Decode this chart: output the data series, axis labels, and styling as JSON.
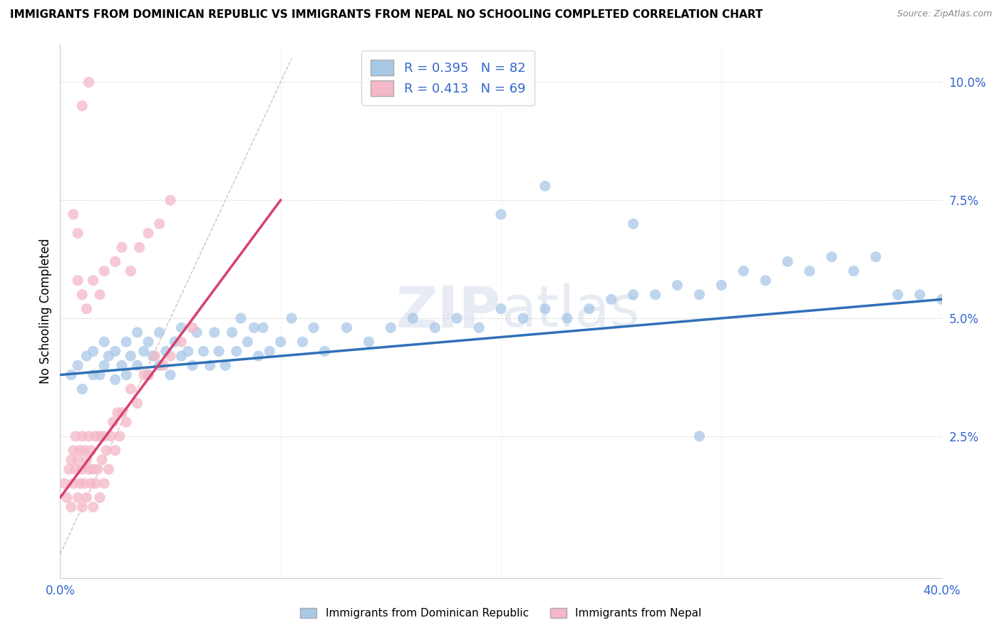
{
  "title": "IMMIGRANTS FROM DOMINICAN REPUBLIC VS IMMIGRANTS FROM NEPAL NO SCHOOLING COMPLETED CORRELATION CHART",
  "source": "Source: ZipAtlas.com",
  "ylabel": "No Schooling Completed",
  "ytick_vals": [
    0.025,
    0.05,
    0.075,
    0.1
  ],
  "ytick_labels": [
    "2.5%",
    "5.0%",
    "7.5%",
    "10.0%"
  ],
  "xrange": [
    0.0,
    0.4
  ],
  "yrange": [
    -0.005,
    0.108
  ],
  "legend_blue_r": "R = 0.395",
  "legend_blue_n": "N = 82",
  "legend_pink_r": "R = 0.413",
  "legend_pink_n": "N = 69",
  "blue_color": "#a8c8e8",
  "pink_color": "#f4b8c8",
  "blue_line_color": "#3070b8",
  "pink_line_color": "#d84070",
  "diagonal_color": "#ddbbbb",
  "label_blue": "Immigrants from Dominican Republic",
  "label_pink": "Immigrants from Nepal",
  "blue_scatter_x": [
    0.005,
    0.008,
    0.01,
    0.012,
    0.015,
    0.015,
    0.018,
    0.02,
    0.02,
    0.022,
    0.025,
    0.025,
    0.028,
    0.03,
    0.03,
    0.032,
    0.035,
    0.035,
    0.038,
    0.04,
    0.04,
    0.042,
    0.045,
    0.045,
    0.048,
    0.05,
    0.052,
    0.055,
    0.055,
    0.058,
    0.06,
    0.062,
    0.065,
    0.068,
    0.07,
    0.072,
    0.075,
    0.078,
    0.08,
    0.082,
    0.085,
    0.088,
    0.09,
    0.092,
    0.095,
    0.1,
    0.105,
    0.11,
    0.115,
    0.12,
    0.13,
    0.14,
    0.15,
    0.16,
    0.17,
    0.18,
    0.19,
    0.2,
    0.21,
    0.22,
    0.23,
    0.24,
    0.25,
    0.26,
    0.27,
    0.28,
    0.29,
    0.3,
    0.31,
    0.32,
    0.33,
    0.34,
    0.35,
    0.36,
    0.37,
    0.38,
    0.39,
    0.4,
    0.2,
    0.22,
    0.26,
    0.29
  ],
  "blue_scatter_y": [
    0.038,
    0.04,
    0.035,
    0.042,
    0.038,
    0.043,
    0.038,
    0.04,
    0.045,
    0.042,
    0.037,
    0.043,
    0.04,
    0.038,
    0.045,
    0.042,
    0.04,
    0.047,
    0.043,
    0.038,
    0.045,
    0.042,
    0.04,
    0.047,
    0.043,
    0.038,
    0.045,
    0.042,
    0.048,
    0.043,
    0.04,
    0.047,
    0.043,
    0.04,
    0.047,
    0.043,
    0.04,
    0.047,
    0.043,
    0.05,
    0.045,
    0.048,
    0.042,
    0.048,
    0.043,
    0.045,
    0.05,
    0.045,
    0.048,
    0.043,
    0.048,
    0.045,
    0.048,
    0.05,
    0.048,
    0.05,
    0.048,
    0.052,
    0.05,
    0.052,
    0.05,
    0.052,
    0.054,
    0.055,
    0.055,
    0.057,
    0.055,
    0.057,
    0.06,
    0.058,
    0.062,
    0.06,
    0.063,
    0.06,
    0.063,
    0.055,
    0.055,
    0.054,
    0.072,
    0.078,
    0.07,
    0.025
  ],
  "pink_scatter_x": [
    0.002,
    0.003,
    0.004,
    0.005,
    0.005,
    0.006,
    0.006,
    0.007,
    0.007,
    0.008,
    0.008,
    0.009,
    0.009,
    0.01,
    0.01,
    0.01,
    0.011,
    0.011,
    0.012,
    0.012,
    0.013,
    0.013,
    0.014,
    0.014,
    0.015,
    0.015,
    0.016,
    0.016,
    0.017,
    0.018,
    0.018,
    0.019,
    0.02,
    0.02,
    0.021,
    0.022,
    0.023,
    0.024,
    0.025,
    0.026,
    0.027,
    0.028,
    0.03,
    0.032,
    0.035,
    0.038,
    0.04,
    0.043,
    0.047,
    0.05,
    0.055,
    0.06,
    0.008,
    0.01,
    0.012,
    0.015,
    0.018,
    0.02,
    0.025,
    0.028,
    0.032,
    0.036,
    0.04,
    0.045,
    0.05,
    0.006,
    0.008,
    0.01,
    0.013
  ],
  "pink_scatter_y": [
    0.015,
    0.012,
    0.018,
    0.01,
    0.02,
    0.015,
    0.022,
    0.018,
    0.025,
    0.012,
    0.02,
    0.015,
    0.022,
    0.01,
    0.018,
    0.025,
    0.015,
    0.022,
    0.012,
    0.02,
    0.018,
    0.025,
    0.015,
    0.022,
    0.01,
    0.018,
    0.015,
    0.025,
    0.018,
    0.012,
    0.025,
    0.02,
    0.015,
    0.025,
    0.022,
    0.018,
    0.025,
    0.028,
    0.022,
    0.03,
    0.025,
    0.03,
    0.028,
    0.035,
    0.032,
    0.038,
    0.038,
    0.042,
    0.04,
    0.042,
    0.045,
    0.048,
    0.058,
    0.055,
    0.052,
    0.058,
    0.055,
    0.06,
    0.062,
    0.065,
    0.06,
    0.065,
    0.068,
    0.07,
    0.075,
    0.072,
    0.068,
    0.095,
    0.1
  ],
  "blue_line_x": [
    0.0,
    0.4
  ],
  "blue_line_y": [
    0.038,
    0.054
  ],
  "pink_line_x": [
    0.0,
    0.1
  ],
  "pink_line_y": [
    0.012,
    0.075
  ],
  "diag_line_x": [
    0.0,
    0.105
  ],
  "diag_line_y": [
    0.0,
    0.105
  ],
  "watermark_top": "ZIP",
  "watermark_bot": "atlas",
  "background_color": "#ffffff",
  "grid_color": "#e0e0e0"
}
